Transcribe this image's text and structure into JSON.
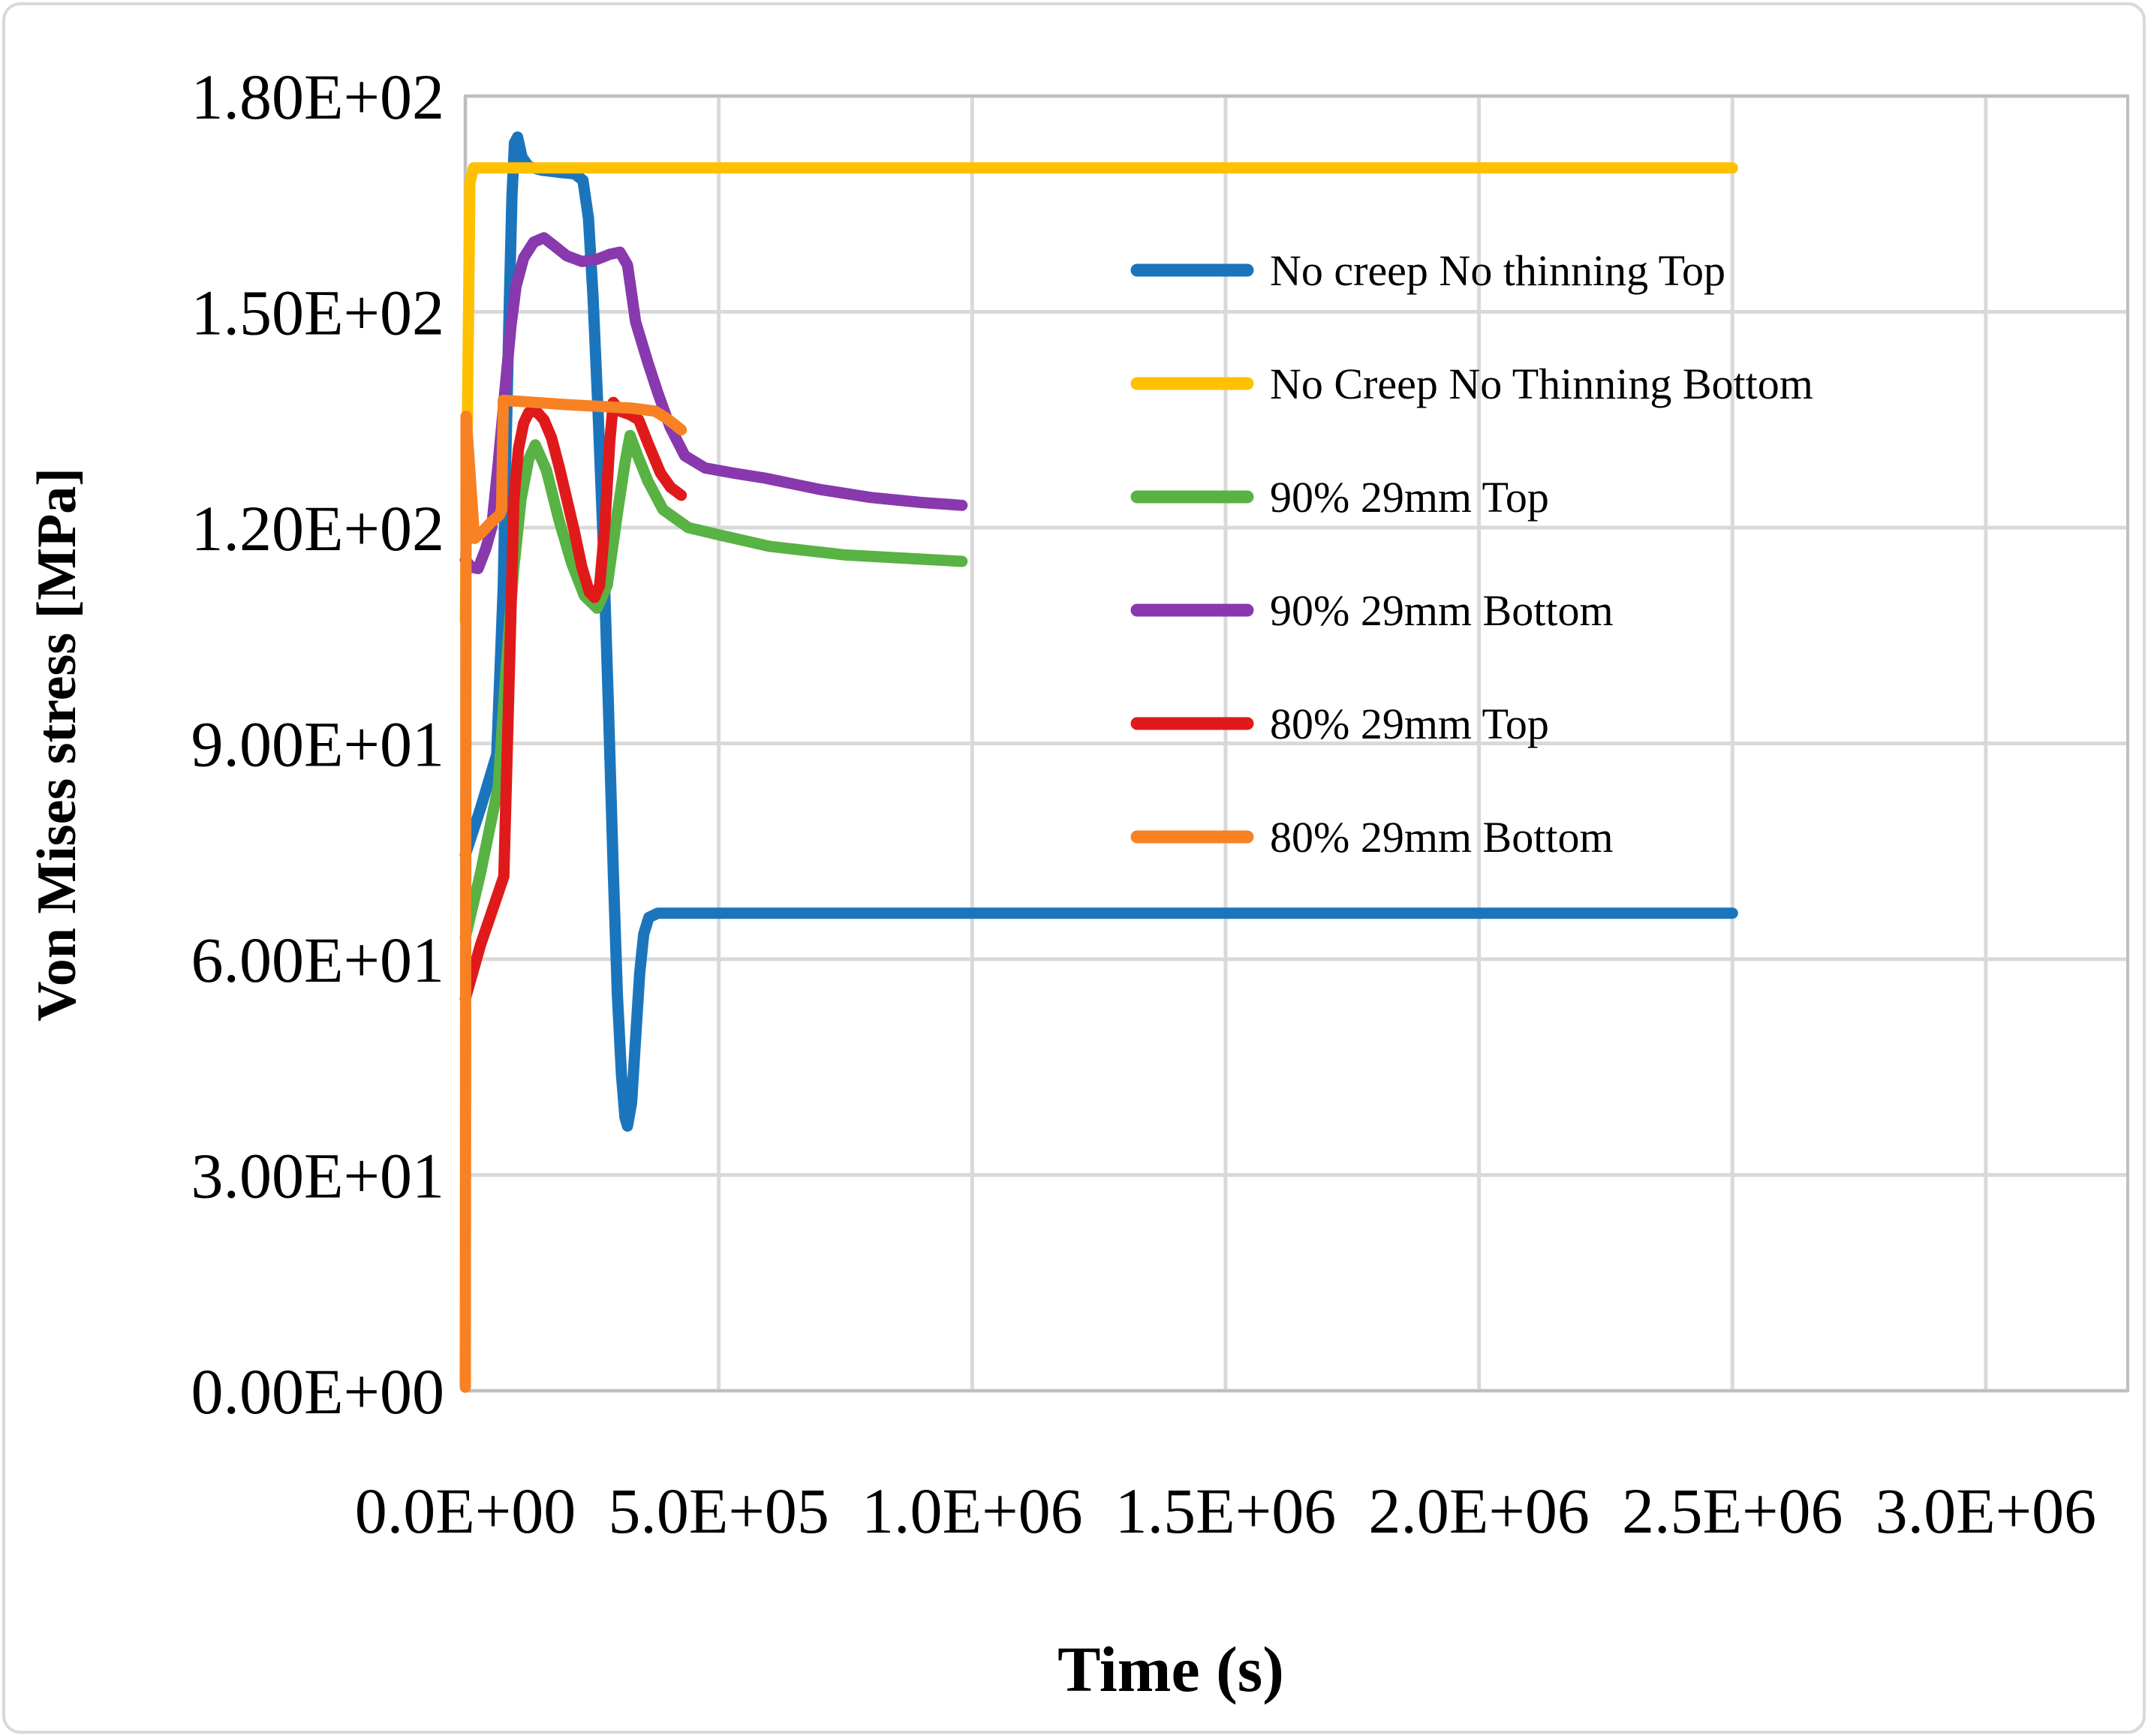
{
  "chart_data": {
    "type": "line",
    "title": "",
    "xlabel": "Time (s)",
    "ylabel": "Von Mises stress [MPa]",
    "xlim": [
      0,
      3280000
    ],
    "ylim": [
      0,
      180
    ],
    "grid": true,
    "legend_position": "inside-right-upper",
    "x_ticks": {
      "values": [
        0,
        500000,
        1000000,
        1500000,
        2000000,
        2500000,
        3000000
      ],
      "labels": [
        "0.0E+00",
        "5.0E+05",
        "1.0E+06",
        "1.5E+06",
        "2.0E+06",
        "2.5E+06",
        "3.0E+06"
      ]
    },
    "y_ticks": {
      "values": [
        0,
        30,
        60,
        90,
        120,
        150,
        180
      ],
      "labels": [
        "0.00E+00",
        "3.00E+01",
        "6.00E+01",
        "9.00E+01",
        "1.20E+02",
        "1.50E+02",
        "1.80E+02"
      ]
    },
    "colors": {
      "gridline": "#D9D9D9",
      "plot_border": "#BFBFBF",
      "chart_border": "#D9D9D9"
    },
    "series": [
      {
        "name": "No creep No thinning Top",
        "color": "#1B75BC",
        "points": [
          [
            0,
            74.5
          ],
          [
            30000,
            81
          ],
          [
            62000,
            88.5
          ],
          [
            75000,
            112
          ],
          [
            80000,
            130
          ],
          [
            87000,
            152
          ],
          [
            92000,
            166
          ],
          [
            97000,
            173.5
          ],
          [
            103000,
            174.3
          ],
          [
            112000,
            171.5
          ],
          [
            125000,
            170.2
          ],
          [
            150000,
            169.7
          ],
          [
            185000,
            169.4
          ],
          [
            215000,
            169.2
          ],
          [
            232000,
            168.3
          ],
          [
            243000,
            163
          ],
          [
            252000,
            152
          ],
          [
            262000,
            136
          ],
          [
            272000,
            118
          ],
          [
            282000,
            96
          ],
          [
            292000,
            72
          ],
          [
            300000,
            55
          ],
          [
            308000,
            44
          ],
          [
            315000,
            38
          ],
          [
            320000,
            36.8
          ],
          [
            328000,
            40
          ],
          [
            336000,
            49
          ],
          [
            344000,
            58
          ],
          [
            352000,
            63.5
          ],
          [
            362000,
            65.8
          ],
          [
            380000,
            66.4
          ],
          [
            2500000,
            66.4
          ]
        ]
      },
      {
        "name": "No Creep No Thinning Bottom",
        "color": "#FFC000",
        "points": [
          [
            0,
            107
          ],
          [
            9000,
            168
          ],
          [
            16000,
            170
          ],
          [
            2500000,
            170
          ]
        ]
      },
      {
        "name": "90% 29mm Top",
        "color": "#58B244",
        "points": [
          [
            0,
            63
          ],
          [
            30000,
            72
          ],
          [
            65000,
            84
          ],
          [
            80000,
            100
          ],
          [
            95000,
            114
          ],
          [
            110000,
            124
          ],
          [
            125000,
            129.5
          ],
          [
            138000,
            131.5
          ],
          [
            160000,
            128
          ],
          [
            185000,
            121
          ],
          [
            210000,
            115
          ],
          [
            235000,
            110.5
          ],
          [
            260000,
            108.8
          ],
          [
            280000,
            112
          ],
          [
            300000,
            122
          ],
          [
            315000,
            129
          ],
          [
            325000,
            132.8
          ],
          [
            340000,
            130
          ],
          [
            360000,
            126.5
          ],
          [
            390000,
            122.5
          ],
          [
            440000,
            120
          ],
          [
            500000,
            119
          ],
          [
            600000,
            117.4
          ],
          [
            750000,
            116.2
          ],
          [
            980000,
            115.3
          ]
        ]
      },
      {
        "name": "90% 29mm Bottom",
        "color": "#8839AD",
        "points": [
          [
            0,
            115.5
          ],
          [
            12000,
            114.5
          ],
          [
            25000,
            114.3
          ],
          [
            40000,
            117
          ],
          [
            52000,
            120
          ],
          [
            65000,
            129
          ],
          [
            78000,
            139
          ],
          [
            90000,
            148
          ],
          [
            100000,
            153.5
          ],
          [
            115000,
            157.5
          ],
          [
            135000,
            159.7
          ],
          [
            155000,
            160.3
          ],
          [
            175000,
            159.2
          ],
          [
            200000,
            157.8
          ],
          [
            230000,
            157
          ],
          [
            260000,
            157.3
          ],
          [
            285000,
            158
          ],
          [
            305000,
            158.3
          ],
          [
            320000,
            156.5
          ],
          [
            336000,
            148.6
          ],
          [
            360000,
            143
          ],
          [
            380000,
            138.7
          ],
          [
            404000,
            134
          ],
          [
            433000,
            130
          ],
          [
            473000,
            128.3
          ],
          [
            528000,
            127.6
          ],
          [
            590000,
            126.9
          ],
          [
            700000,
            125.3
          ],
          [
            800000,
            124.2
          ],
          [
            900000,
            123.5
          ],
          [
            980000,
            123.1
          ]
        ]
      },
      {
        "name": "80% 29mm Top",
        "color": "#E01A1A",
        "points": [
          [
            0,
            54.5
          ],
          [
            30000,
            62
          ],
          [
            76000,
            71.5
          ],
          [
            85000,
            95
          ],
          [
            96000,
            124
          ],
          [
            105000,
            131
          ],
          [
            115000,
            134.5
          ],
          [
            125000,
            136
          ],
          [
            140000,
            136.2
          ],
          [
            155000,
            135
          ],
          [
            170000,
            132.5
          ],
          [
            185000,
            128.5
          ],
          [
            200000,
            124
          ],
          [
            215000,
            119.5
          ],
          [
            230000,
            114.5
          ],
          [
            245000,
            111
          ],
          [
            255000,
            110.3
          ],
          [
            265000,
            112
          ],
          [
            275000,
            120
          ],
          [
            285000,
            132
          ],
          [
            292000,
            137.4
          ],
          [
            305000,
            136.2
          ],
          [
            325000,
            135.7
          ],
          [
            342000,
            135
          ],
          [
            360000,
            131.8
          ],
          [
            385000,
            127.6
          ],
          [
            405000,
            125.6
          ],
          [
            426000,
            124.5
          ]
        ]
      },
      {
        "name": "80% 29mm Bottom",
        "color": "#F78123",
        "points": [
          [
            0,
            0.5
          ],
          [
            1500,
            135.5
          ],
          [
            18000,
            118.5
          ],
          [
            32000,
            119.3
          ],
          [
            50000,
            120.7
          ],
          [
            68000,
            121.8
          ],
          [
            71500,
            122.5
          ],
          [
            75000,
            137.7
          ],
          [
            120000,
            137.5
          ],
          [
            200000,
            137.1
          ],
          [
            280000,
            136.8
          ],
          [
            330000,
            136.6
          ],
          [
            374000,
            136.2
          ],
          [
            395000,
            135.3
          ],
          [
            410000,
            134.5
          ],
          [
            426000,
            133.6
          ]
        ]
      }
    ]
  }
}
